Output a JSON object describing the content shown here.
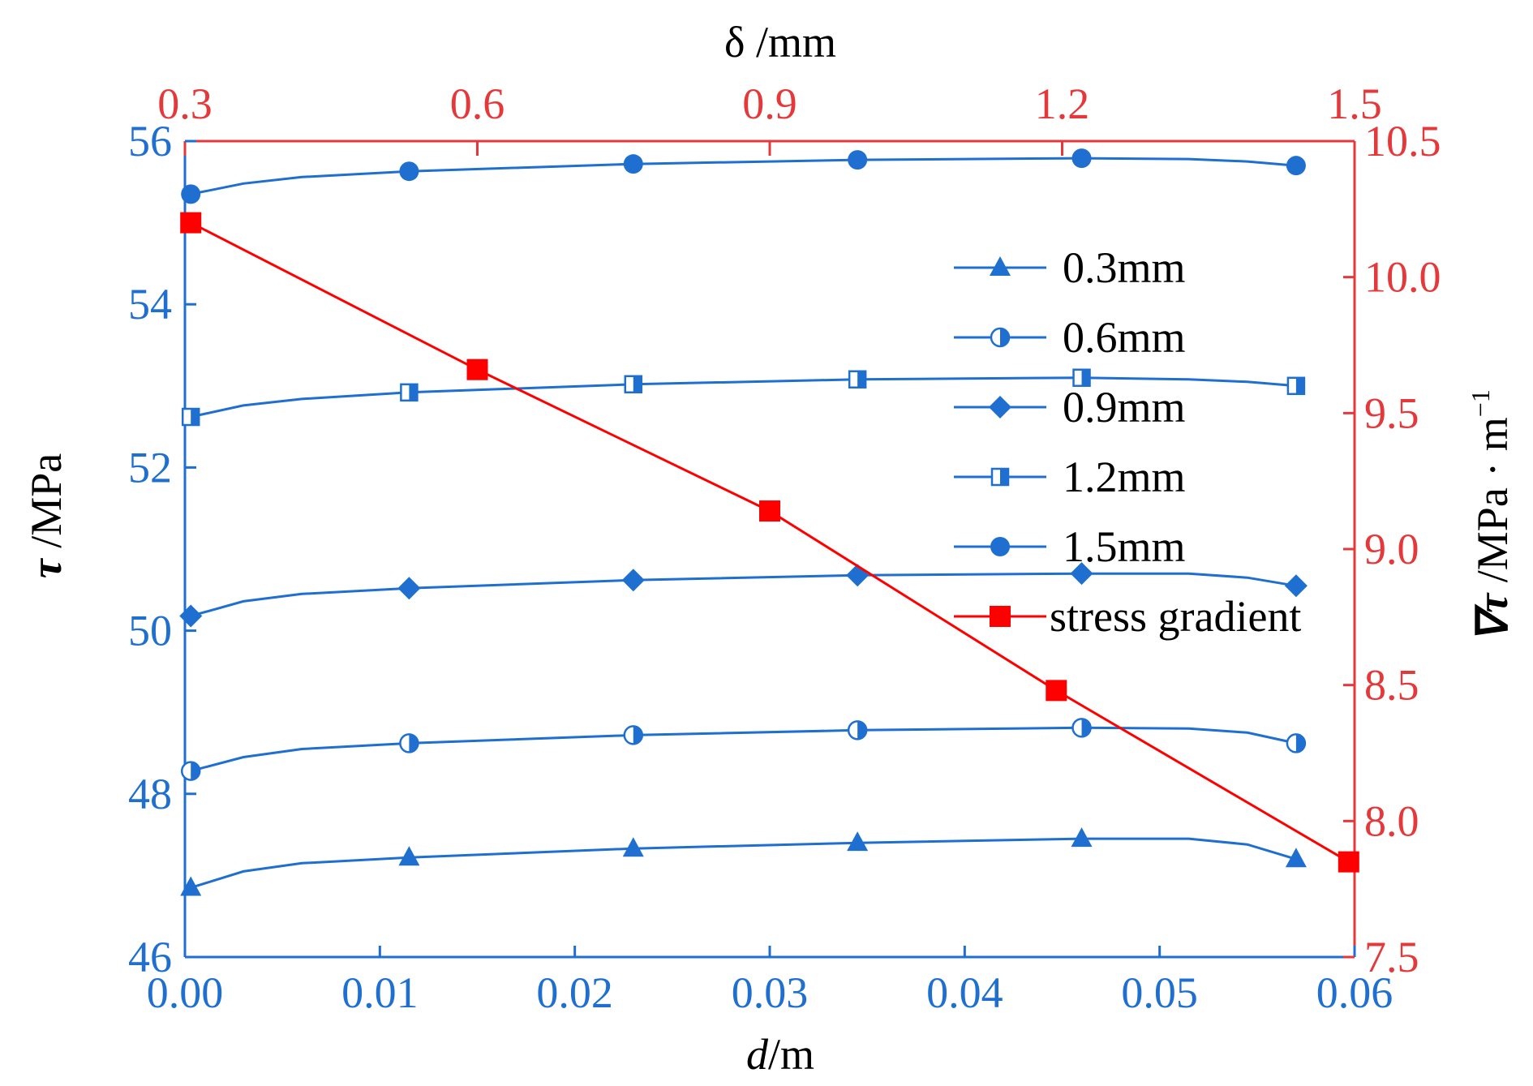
{
  "chart_data": {
    "type": "line",
    "colors": {
      "primary": "#1f6fd1",
      "secondary": "#e5383b",
      "gradient_line": "#ff0000",
      "frame": "#e5383b"
    },
    "axes": {
      "bottom": {
        "label_main": "d",
        "label_unit": "/m",
        "range": [
          0.0,
          0.06
        ],
        "ticks": [
          "0.00",
          "0.01",
          "0.02",
          "0.03",
          "0.04",
          "0.05",
          "0.06"
        ]
      },
      "top": {
        "label": "δ /mm",
        "range": [
          0.3,
          1.5
        ],
        "ticks": [
          "0.3",
          "0.6",
          "0.9",
          "1.2",
          "1.5"
        ]
      },
      "left": {
        "label_symbol": "τ",
        "label_unit": " /MPa",
        "range": [
          46,
          56
        ],
        "ticks": [
          "46",
          "48",
          "50",
          "52",
          "54",
          "56"
        ]
      },
      "right": {
        "label_symbol": "∇τ",
        "label_unit": " /MPa · m",
        "label_sup": "−1",
        "range": [
          7.5,
          10.5
        ],
        "ticks": [
          "7.5",
          "8.0",
          "8.5",
          "9.0",
          "9.5",
          "10.0",
          "10.5"
        ]
      }
    },
    "legend": {
      "placement": "top-right-inside"
    },
    "series": [
      {
        "name": "0.3mm",
        "marker": "triangle",
        "axis": "left",
        "x": [
          0.0003,
          0.003,
          0.006,
          0.0115,
          0.023,
          0.0345,
          0.046,
          0.0515,
          0.0545,
          0.057
        ],
        "y": [
          46.85,
          47.05,
          47.15,
          47.22,
          47.33,
          47.4,
          47.45,
          47.45,
          47.38,
          47.2
        ],
        "marker_x": [
          0.0003,
          0.0115,
          0.023,
          0.0345,
          0.046,
          0.057
        ],
        "marker_y": [
          46.85,
          47.22,
          47.33,
          47.4,
          47.45,
          47.2
        ]
      },
      {
        "name": "0.6mm",
        "marker": "half-circle",
        "axis": "left",
        "x": [
          0.0003,
          0.003,
          0.006,
          0.0115,
          0.023,
          0.0345,
          0.046,
          0.0515,
          0.0545,
          0.057
        ],
        "y": [
          48.28,
          48.45,
          48.55,
          48.62,
          48.72,
          48.78,
          48.81,
          48.8,
          48.75,
          48.62
        ],
        "marker_x": [
          0.0003,
          0.0115,
          0.023,
          0.0345,
          0.046,
          0.057
        ],
        "marker_y": [
          48.28,
          48.62,
          48.72,
          48.78,
          48.81,
          48.62
        ]
      },
      {
        "name": "0.9mm",
        "marker": "diamond",
        "axis": "left",
        "x": [
          0.0003,
          0.003,
          0.006,
          0.0115,
          0.023,
          0.0345,
          0.046,
          0.0515,
          0.0545,
          0.057
        ],
        "y": [
          50.18,
          50.36,
          50.45,
          50.52,
          50.62,
          50.68,
          50.7,
          50.7,
          50.65,
          50.55
        ],
        "marker_x": [
          0.0003,
          0.0115,
          0.023,
          0.0345,
          0.046,
          0.057
        ],
        "marker_y": [
          50.18,
          50.52,
          50.62,
          50.68,
          50.7,
          50.55
        ]
      },
      {
        "name": "1.2mm",
        "marker": "half-square",
        "axis": "left",
        "x": [
          0.0003,
          0.003,
          0.006,
          0.0115,
          0.023,
          0.0345,
          0.046,
          0.0515,
          0.0545,
          0.057
        ],
        "y": [
          52.62,
          52.76,
          52.84,
          52.92,
          53.02,
          53.08,
          53.1,
          53.08,
          53.05,
          53.0
        ],
        "marker_x": [
          0.0003,
          0.0115,
          0.023,
          0.0345,
          0.046,
          0.057
        ],
        "marker_y": [
          52.62,
          52.92,
          53.02,
          53.08,
          53.1,
          53.0
        ]
      },
      {
        "name": "1.5mm",
        "marker": "circle",
        "axis": "left",
        "x": [
          0.0003,
          0.003,
          0.006,
          0.0115,
          0.023,
          0.0345,
          0.046,
          0.0515,
          0.0545,
          0.057
        ],
        "y": [
          55.35,
          55.48,
          55.56,
          55.63,
          55.72,
          55.77,
          55.79,
          55.78,
          55.75,
          55.7
        ],
        "marker_x": [
          0.0003,
          0.0115,
          0.023,
          0.0345,
          0.046,
          0.057
        ],
        "marker_y": [
          55.35,
          55.63,
          55.72,
          55.77,
          55.79,
          55.7
        ]
      },
      {
        "name": "stress gradient",
        "marker": "square",
        "axis": "right",
        "x": [
          0.0003,
          0.015,
          0.03,
          0.0447,
          0.0597
        ],
        "y": [
          10.2,
          9.66,
          9.14,
          8.48,
          7.85
        ],
        "marker_x": [
          0.0003,
          0.015,
          0.03,
          0.0447,
          0.0597
        ],
        "marker_y": [
          10.2,
          9.66,
          9.14,
          8.48,
          7.85
        ]
      }
    ]
  }
}
